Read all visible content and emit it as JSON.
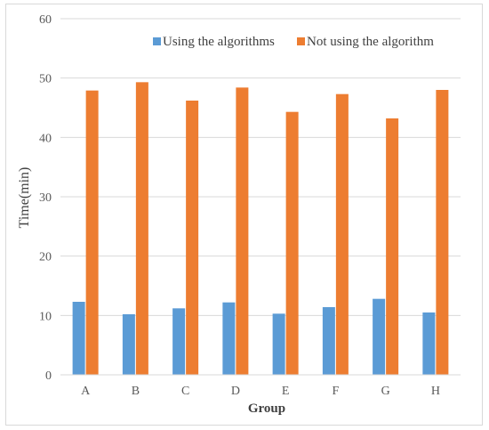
{
  "chart_data": {
    "type": "bar",
    "title": "",
    "xlabel": "Group",
    "ylabel": "Time(min)",
    "ylim": [
      0,
      60
    ],
    "yticks": [
      0,
      10,
      20,
      30,
      40,
      50,
      60
    ],
    "grid": true,
    "legend_position": "top-right",
    "categories": [
      "A",
      "B",
      "C",
      "D",
      "E",
      "F",
      "G",
      "H"
    ],
    "series": [
      {
        "name": "Using the algorithms",
        "color": "#5b9bd5",
        "values": [
          12.3,
          10.2,
          11.2,
          12.2,
          10.3,
          11.4,
          12.8,
          10.5
        ]
      },
      {
        "name": "Not using the algorithm",
        "color": "#ed7d31",
        "values": [
          47.9,
          49.3,
          46.2,
          48.4,
          44.3,
          47.3,
          43.2,
          48.0
        ]
      }
    ]
  }
}
